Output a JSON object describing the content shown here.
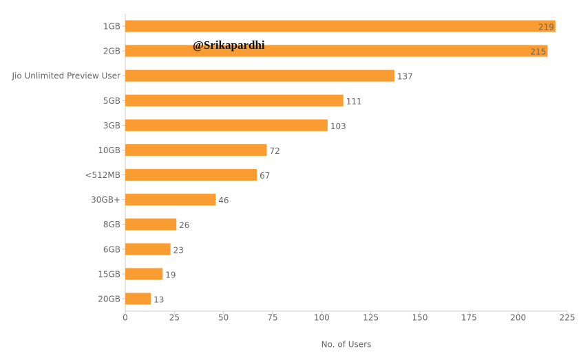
{
  "chart_data": {
    "type": "barh",
    "categories": [
      "1GB",
      "2GB",
      "Jio Unlimited Preview User",
      "5GB",
      "3GB",
      "10GB",
      "<512MB",
      "30GB+",
      "8GB",
      "6GB",
      "15GB",
      "20GB"
    ],
    "values": [
      219,
      215,
      137,
      111,
      103,
      72,
      67,
      46,
      26,
      23,
      19,
      13
    ],
    "color": "#f99d33",
    "xlabel": "No. of Users",
    "xlim": [
      0,
      225
    ],
    "xticks": [
      0,
      25,
      50,
      75,
      100,
      125,
      150,
      175,
      200,
      225
    ],
    "watermark": "@Srikapardhi"
  }
}
